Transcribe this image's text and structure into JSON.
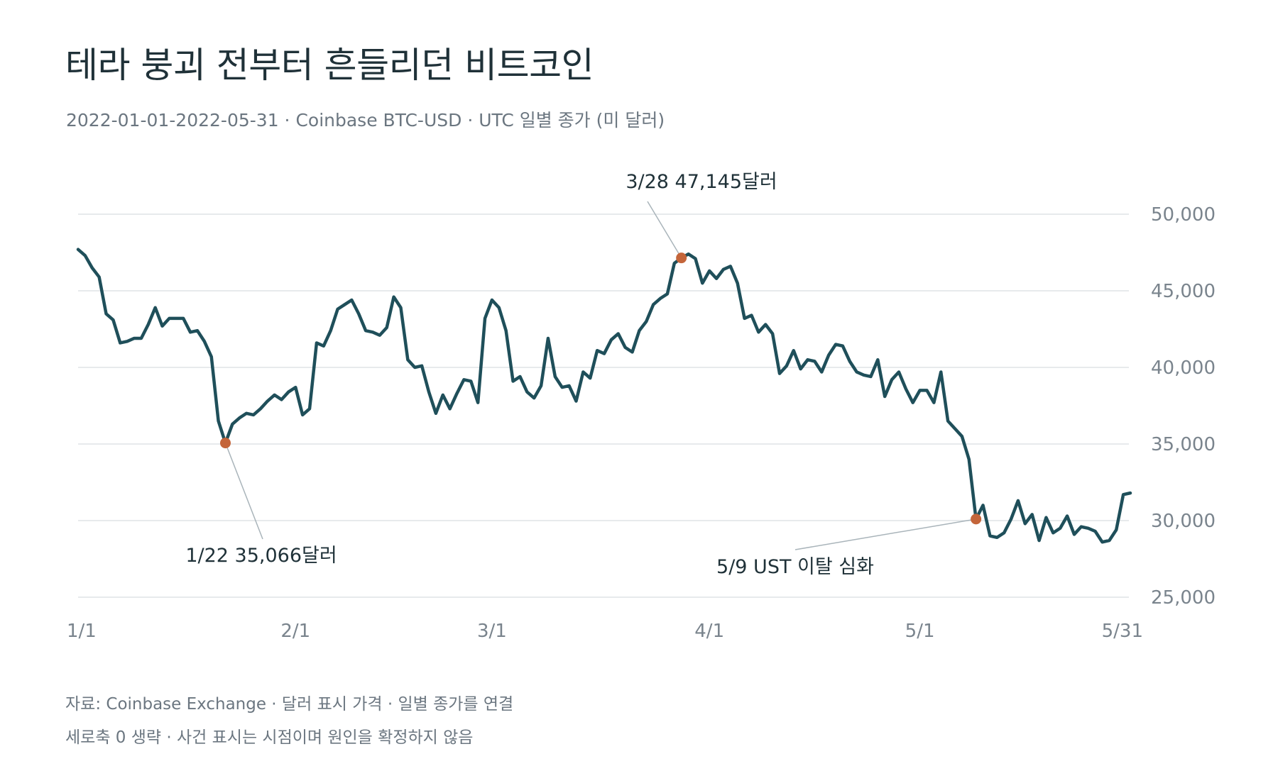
{
  "title": "테라 붕괴 전부터 흔들리던 비트코인",
  "subtitle": "2022-01-01-2022-05-31 · Coinbase BTC-USD · UTC 일별 종가 (미 달러)",
  "footnotes": {
    "source": "자료: Coinbase Exchange · 달러 표시 가격 · 일별 종가를 연결",
    "note": "세로축 0 생략 · 사건 표시는 시점이며 원인을 확정하지 않음"
  },
  "colors": {
    "line": "#1f4f5a",
    "marker": "#c4653a",
    "grid": "#dfe3e6",
    "axis_text": "#7a848d",
    "annotation_text": "#1f3138",
    "leader": "#a9b4ba"
  },
  "chart_data": {
    "type": "line",
    "x_start": "2022-01-01",
    "x_end": "2022-05-31",
    "ylim": [
      25000,
      50000
    ],
    "yticks": [
      25000,
      30000,
      35000,
      40000,
      45000,
      50000
    ],
    "ytick_labels": [
      "25,000",
      "30,000",
      "35,000",
      "40,000",
      "45,000",
      "50,000"
    ],
    "xticks": [
      {
        "label": "1/1",
        "date": "2022-01-01"
      },
      {
        "label": "2/1",
        "date": "2022-02-01"
      },
      {
        "label": "3/1",
        "date": "2022-03-01"
      },
      {
        "label": "4/1",
        "date": "2022-04-01"
      },
      {
        "label": "5/1",
        "date": "2022-05-01"
      },
      {
        "label": "5/31",
        "date": "2022-05-31"
      }
    ],
    "grid": true,
    "series": [
      {
        "values": [
          47700,
          47300,
          46500,
          45900,
          43500,
          43100,
          41600,
          41700,
          41900,
          41900,
          42800,
          43900,
          42700,
          43200,
          43200,
          43200,
          42300,
          42400,
          41700,
          40700,
          36500,
          35066,
          36300,
          36700,
          37000,
          36900,
          37300,
          37800,
          38200,
          37900,
          38400,
          38700,
          36900,
          37300,
          41600,
          41400,
          42400,
          43800,
          44100,
          44400,
          43500,
          42400,
          42300,
          42100,
          42600,
          44600,
          43900,
          40500,
          40000,
          40100,
          38400,
          37000,
          38200,
          37300,
          38300,
          39200,
          39100,
          37700,
          43200,
          44400,
          43900,
          42400,
          39100,
          39400,
          38400,
          38000,
          38800,
          41900,
          39400,
          38700,
          38800,
          37800,
          39700,
          39300,
          41100,
          40900,
          41800,
          42200,
          41300,
          41000,
          42400,
          43000,
          44100,
          44500,
          44800,
          46800,
          47145,
          47400,
          47100,
          45500,
          46300,
          45800,
          46400,
          46600,
          45500,
          43200,
          43400,
          42300,
          42800,
          42200,
          39600,
          40100,
          41100,
          39900,
          40500,
          40400,
          39700,
          40800,
          41500,
          41400,
          40400,
          39700,
          39500,
          39400,
          40500,
          38100,
          39200,
          39700,
          38600,
          37700,
          38500,
          38500,
          37700,
          39700,
          36500,
          36000,
          35500,
          34000,
          30100,
          31000,
          29000,
          28900,
          29200,
          30100,
          31300,
          29800,
          30400,
          28700,
          30200,
          29200,
          29500,
          30300,
          29100,
          29600,
          29500,
          29300,
          28600,
          28700,
          29400,
          31700,
          31800
        ]
      }
    ],
    "annotations": [
      {
        "label": "1/22 35,066달러",
        "date": "2022-01-22",
        "value": 35066
      },
      {
        "label": "3/28 47,145달러",
        "date": "2022-03-28",
        "value": 47145
      },
      {
        "label": "5/9 UST 이탈 심화",
        "date": "2022-05-09",
        "value": 30100
      }
    ]
  }
}
